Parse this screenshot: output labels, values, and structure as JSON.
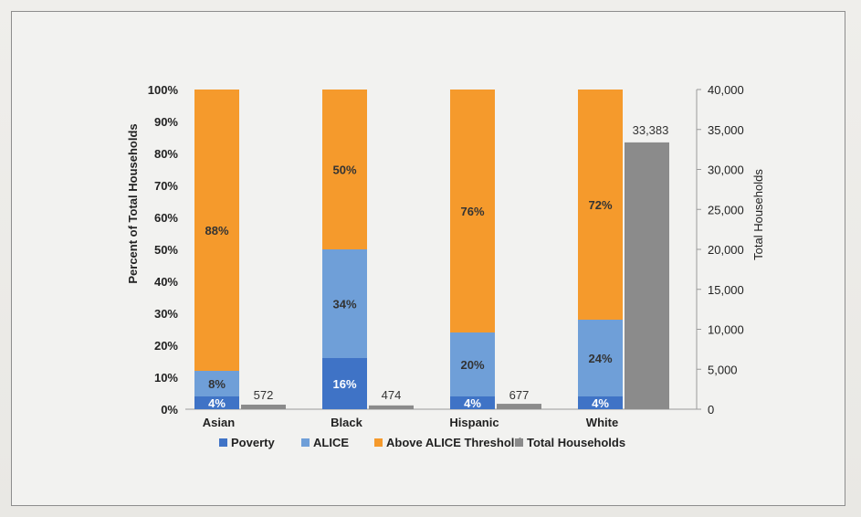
{
  "chart_data": {
    "type": "bar",
    "stacked": true,
    "categories": [
      "Asian",
      "Black",
      "Hispanic",
      "White"
    ],
    "series": [
      {
        "name": "Poverty",
        "values": [
          4,
          16,
          4,
          4
        ],
        "labels": [
          "4%",
          "16%",
          "4%",
          "4%"
        ]
      },
      {
        "name": "ALICE",
        "values": [
          8,
          34,
          20,
          24
        ],
        "labels": [
          "8%",
          "34%",
          "20%",
          "24%"
        ]
      },
      {
        "name": "Above ALICE Threshold",
        "values": [
          88,
          50,
          76,
          72
        ],
        "labels": [
          "88%",
          "50%",
          "76%",
          "72%"
        ]
      },
      {
        "name": "Total Households",
        "axis": "right",
        "values": [
          572,
          474,
          677,
          33383
        ],
        "labels": [
          "572",
          "474",
          "677",
          "33,383"
        ]
      }
    ],
    "ylabel": "Percent of Total Households",
    "ylabel_right": "Total Households",
    "ylim": [
      0,
      100
    ],
    "ylim_right": [
      0,
      40000
    ],
    "yticks": [
      "0%",
      "10%",
      "20%",
      "30%",
      "40%",
      "50%",
      "60%",
      "70%",
      "80%",
      "90%",
      "100%"
    ],
    "yticks_right": [
      "0",
      "5,000",
      "10,000",
      "15,000",
      "20,000",
      "25,000",
      "30,000",
      "35,000",
      "40,000"
    ],
    "legend_position": "bottom",
    "grid": false,
    "colors": {
      "Poverty": "#3f73c6",
      "ALICE": "#6f9fd8",
      "Above ALICE Threshold": "#f59a2c",
      "Total Households": "#8b8b8b"
    }
  }
}
